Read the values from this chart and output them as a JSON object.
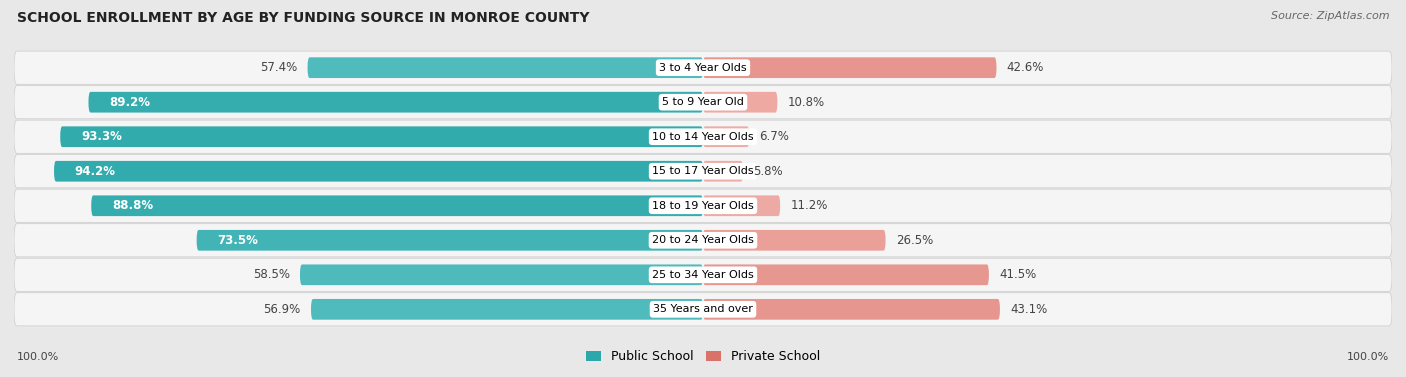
{
  "title": "SCHOOL ENROLLMENT BY AGE BY FUNDING SOURCE IN MONROE COUNTY",
  "source": "Source: ZipAtlas.com",
  "categories": [
    "3 to 4 Year Olds",
    "5 to 9 Year Old",
    "10 to 14 Year Olds",
    "15 to 17 Year Olds",
    "18 to 19 Year Olds",
    "20 to 24 Year Olds",
    "25 to 34 Year Olds",
    "35 Years and over"
  ],
  "public_values": [
    57.4,
    89.2,
    93.3,
    94.2,
    88.8,
    73.5,
    58.5,
    56.9
  ],
  "private_values": [
    42.6,
    10.8,
    6.7,
    5.8,
    11.2,
    26.5,
    41.5,
    43.1
  ],
  "public_color_dark": "#2ca8aa",
  "public_color_light": "#7fd4d6",
  "private_color_dark": "#d9736a",
  "private_color_light": "#f0b0aa",
  "public_label": "Public School",
  "private_label": "Private School",
  "bg_color": "#e8e8e8",
  "row_bg_color": "#f5f5f5",
  "label_bg_color": "#ffffff",
  "title_fontsize": 10,
  "source_fontsize": 8,
  "bar_label_fontsize": 8.5,
  "category_fontsize": 8,
  "legend_fontsize": 9,
  "footer_fontsize": 8,
  "pub_inside_threshold": 70,
  "priv_inside_threshold": 30
}
